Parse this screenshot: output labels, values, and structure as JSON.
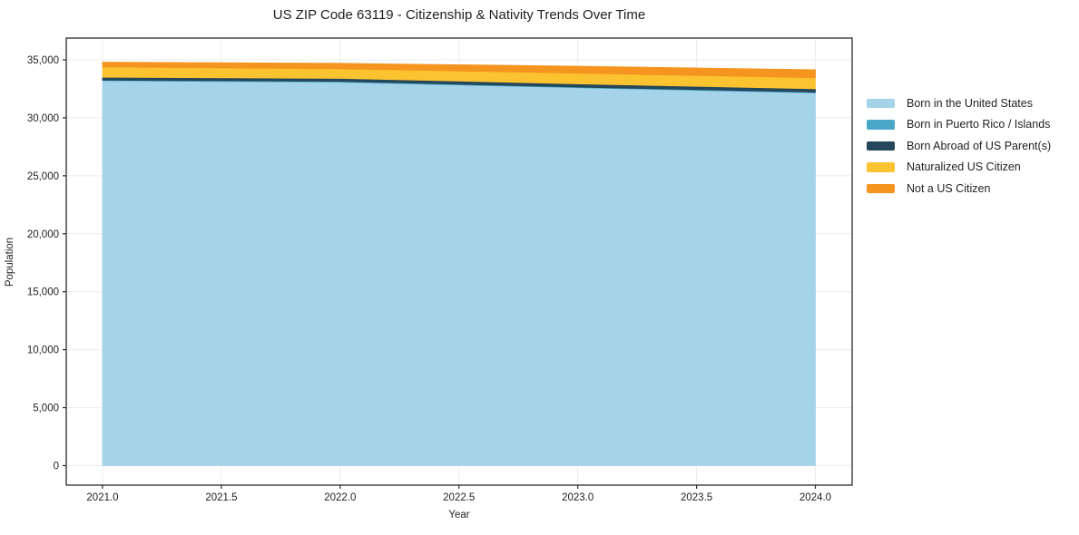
{
  "chart_data": {
    "type": "area",
    "stacked": true,
    "title": "US ZIP Code 63119 - Citizenship & Nativity Trends Over Time",
    "xlabel": "Year",
    "ylabel": "Population",
    "x": [
      2021,
      2022,
      2023,
      2024
    ],
    "series": [
      {
        "name": "Born in the United States",
        "color": "#a5d3e8",
        "values": [
          33200,
          33080,
          32600,
          32150
        ]
      },
      {
        "name": "Born in Puerto Rico / Islands",
        "color": "#4aa8c6",
        "values": [
          50,
          60,
          50,
          60
        ]
      },
      {
        "name": "Born Abroad of US Parent(s)",
        "color": "#24475c",
        "values": [
          250,
          260,
          280,
          290
        ]
      },
      {
        "name": "Naturalized US Citizen",
        "color": "#fcc331",
        "values": [
          880,
          830,
          920,
          950
        ]
      },
      {
        "name": "Not a US Citizen",
        "color": "#f5941f",
        "values": [
          420,
          470,
          600,
          700
        ]
      }
    ],
    "xticks": {
      "values": [
        2021.0,
        2021.5,
        2022.0,
        2022.5,
        2023.0,
        2023.5,
        2024.0
      ],
      "labels": [
        "2021.0",
        "2021.5",
        "2022.0",
        "2022.5",
        "2023.0",
        "2023.5",
        "2024.0"
      ]
    },
    "yticks": {
      "values": [
        0,
        5000,
        10000,
        15000,
        20000,
        25000,
        30000,
        35000
      ],
      "labels": [
        "0",
        "5,000",
        "10,000",
        "15,000",
        "20,000",
        "25,000",
        "30,000",
        "35,000"
      ]
    },
    "ylim": [
      0,
      35000
    ],
    "grid": true,
    "legend_position": "right",
    "colors": {
      "grid": "#ececec",
      "spine": "#2b2b2b",
      "tick_text": "#1f1f1f",
      "background": "#ffffff"
    }
  }
}
